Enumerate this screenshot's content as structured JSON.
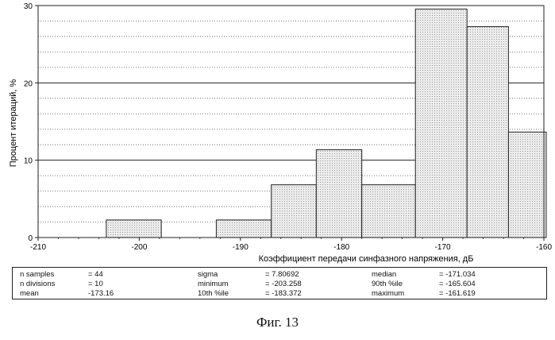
{
  "chart_data": {
    "type": "histogram",
    "xlabel": "Коэффициент передачи синфазного напряжения, дБ",
    "ylabel": "Процент итераций, %",
    "xlim": [
      -210,
      -160
    ],
    "ylim": [
      0,
      30
    ],
    "xticks": [
      "-210",
      "-200",
      "-190",
      "-180",
      "-170",
      "-160"
    ],
    "yticks": [
      "0",
      "10",
      "20",
      "30"
    ],
    "grid": "horizontal: solid at major ticks, dotted at minor",
    "bin_edges": [
      -203.258,
      -197.8218,
      -192.3856,
      -186.9494,
      -181.5132,
      -176.077,
      -170.6408,
      -165.2046,
      -159.7684
    ],
    "bars": [
      {
        "x0": -203.258,
        "x1": -197.8218,
        "value": 2.27
      },
      {
        "x0": -192.3856,
        "x1": -186.9494,
        "value": 2.27
      },
      {
        "x0": -186.9494,
        "x1": -182.5,
        "value": 6.82
      },
      {
        "x0": -182.5,
        "x1": -178.0,
        "value": 11.36
      },
      {
        "x0": -178.0,
        "x1": -172.7,
        "value": 6.82
      },
      {
        "x0": -172.7,
        "x1": -167.6,
        "value": 29.55
      },
      {
        "x0": -167.6,
        "x1": -163.5,
        "value": 27.27
      },
      {
        "x0": -163.5,
        "x1": -159.7684,
        "value": 13.64
      }
    ],
    "bar_fill": "#dcdcdc"
  },
  "stats": [
    {
      "label": "n samples",
      "value": "= 44"
    },
    {
      "label": "n divisions",
      "value": "= 10"
    },
    {
      "label": "mean",
      "value": "-173.16"
    },
    {
      "label": "sigma",
      "value": "= 7.80692"
    },
    {
      "label": "minimum",
      "value": "= -203.258"
    },
    {
      "label": "10th %ile",
      "value": "= -183.372"
    },
    {
      "label": "median",
      "value": "= -171.034"
    },
    {
      "label": "90th %ile",
      "value": "= -165.604"
    },
    {
      "label": "maximum",
      "value": "= -161.619"
    }
  ],
  "caption": "Фиг. 13"
}
